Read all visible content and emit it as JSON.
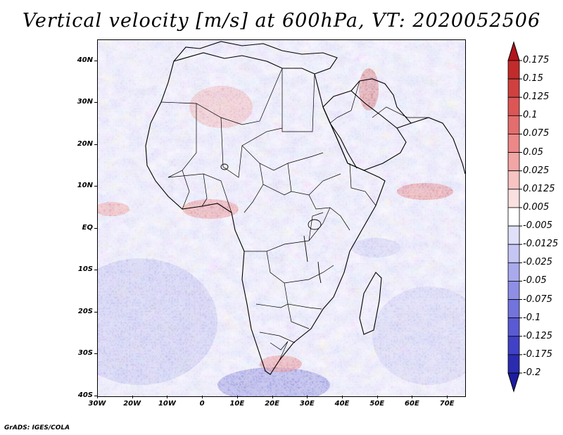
{
  "title": "Vertical velocity [m/s] at 600hPa, VT: 2020052506",
  "credit": "GrADS: IGES/COLA",
  "map": {
    "variable": "Vertical velocity",
    "units": "m/s",
    "level": "600hPa",
    "valid_time": "2020052506",
    "lon_range": [
      -30,
      75
    ],
    "lat_range": [
      -40,
      45
    ],
    "lat_labels": [
      {
        "value": 40,
        "text": "40N"
      },
      {
        "value": 30,
        "text": "30N"
      },
      {
        "value": 20,
        "text": "20N"
      },
      {
        "value": 10,
        "text": "10N"
      },
      {
        "value": 0,
        "text": "EQ"
      },
      {
        "value": -10,
        "text": "10S"
      },
      {
        "value": -20,
        "text": "20S"
      },
      {
        "value": -30,
        "text": "30S"
      },
      {
        "value": -40,
        "text": "40S"
      }
    ],
    "lon_labels": [
      {
        "value": -30,
        "text": "30W"
      },
      {
        "value": -20,
        "text": "20W"
      },
      {
        "value": -10,
        "text": "10W"
      },
      {
        "value": 0,
        "text": "0"
      },
      {
        "value": 10,
        "text": "10E"
      },
      {
        "value": 20,
        "text": "20E"
      },
      {
        "value": 30,
        "text": "30E"
      },
      {
        "value": 40,
        "text": "40E"
      },
      {
        "value": 50,
        "text": "50E"
      },
      {
        "value": 60,
        "text": "60E"
      },
      {
        "value": 70,
        "text": "70E"
      }
    ]
  },
  "colorbar": {
    "levels": [
      "0.175",
      "0.15",
      "0.125",
      "0.1",
      "0.075",
      "0.05",
      "0.025",
      "0.0125",
      "0.005",
      "-0.005",
      "-0.0125",
      "-0.025",
      "-0.05",
      "-0.075",
      "-0.1",
      "-0.125",
      "-0.175",
      "-0.2"
    ],
    "colors": [
      "#b3141c",
      "#c22b2b",
      "#d04040",
      "#dc5656",
      "#e46d6d",
      "#ec8888",
      "#f2a5a5",
      "#f7c3c3",
      "#fbe0e0",
      "#ffffff",
      "#e0e0fb",
      "#c6c6f5",
      "#a9a9ee",
      "#8e8ee6",
      "#7373dd",
      "#5a5ad4",
      "#4141c7",
      "#2b2bb0",
      "#1c1ca0"
    ]
  }
}
